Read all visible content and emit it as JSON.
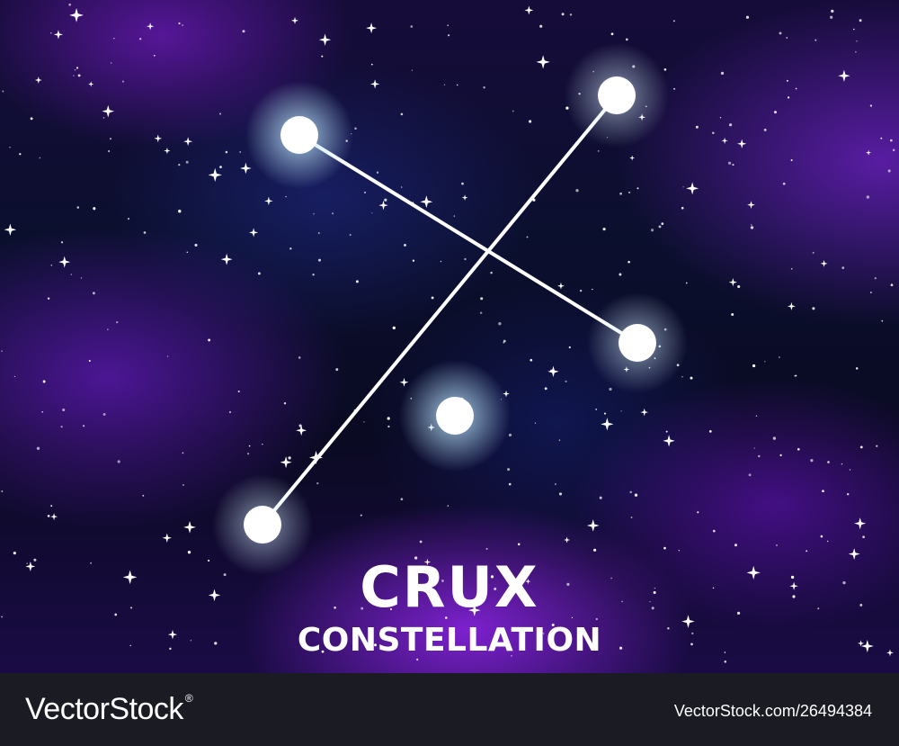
{
  "title": "CRUX",
  "subtitle": "CONSTELLATION",
  "footer": {
    "brand": "VectorStock",
    "brand_mark": "®",
    "image_id": "VectorStock.com/26494384"
  },
  "colors": {
    "star": "#ffffff",
    "glow": "#bfeaff",
    "nebula_purple": "#8a2be2",
    "sky_dark": "#0a0a22",
    "footer_bg": "#1b1b24"
  }
}
